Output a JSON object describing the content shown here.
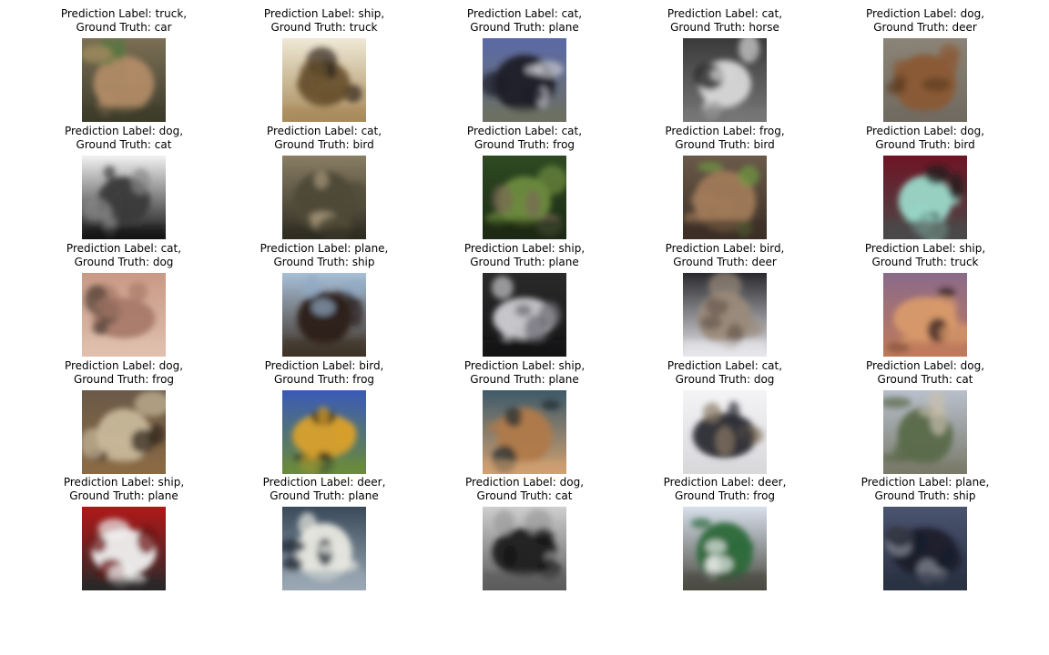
{
  "figure": {
    "panels": [
      {
        "pred": "Prediction Label: truck,",
        "truth": "Ground Truth: car",
        "thumb": "deer",
        "colors": [
          "#7c7055",
          "#b08a66",
          "#4f7a3a",
          "#3a3a2a"
        ]
      },
      {
        "pred": "Prediction Label: ship,",
        "truth": "Ground Truth: truck",
        "thumb": "dog-face",
        "colors": [
          "#efe9d6",
          "#6a5230",
          "#2e2519",
          "#a88a5a"
        ]
      },
      {
        "pred": "Prediction Label: cat,",
        "truth": "Ground Truth: plane",
        "thumb": "truck",
        "colors": [
          "#5a6aa8",
          "#1f1f28",
          "#c8c8d0",
          "#6d7060"
        ]
      },
      {
        "pred": "Prediction Label: cat,",
        "truth": "Ground Truth: horse",
        "thumb": "ostrich",
        "colors": [
          "#3a3a3a",
          "#d8d8d8",
          "#111111",
          "#777777"
        ]
      },
      {
        "pred": "Prediction Label: dog,",
        "truth": "Ground Truth: deer",
        "thumb": "deer-brown",
        "colors": [
          "#8c8478",
          "#8a5a34",
          "#5e3c22",
          "#6f6a5f"
        ]
      },
      {
        "pred": "Prediction Label: dog,",
        "truth": "Ground Truth: cat",
        "thumb": "old-car",
        "colors": [
          "#f2f2f2",
          "#3a3a3a",
          "#888888",
          "#111111"
        ]
      },
      {
        "pred": "Prediction Label: cat,",
        "truth": "Ground Truth: bird",
        "thumb": "frog",
        "colors": [
          "#8a7e64",
          "#4e4a36",
          "#a8977a",
          "#2e2c22"
        ]
      },
      {
        "pred": "Prediction Label: cat,",
        "truth": "Ground Truth: frog",
        "thumb": "bird-leaves",
        "colors": [
          "#2f4a22",
          "#6e8a3e",
          "#7a6a56",
          "#1a2a14"
        ]
      },
      {
        "pred": "Prediction Label: frog,",
        "truth": "Ground Truth: bird",
        "thumb": "frog-brown",
        "colors": [
          "#6a5a4a",
          "#a07a5a",
          "#6e9a3e",
          "#3a2e24"
        ]
      },
      {
        "pred": "Prediction Label: dog,",
        "truth": "Ground Truth: bird",
        "thumb": "dog-dark",
        "colors": [
          "#6e1424",
          "#9ad8c8",
          "#1a1a1a",
          "#4a4a4a"
        ]
      },
      {
        "pred": "Prediction Label: cat,",
        "truth": "Ground Truth: dog",
        "thumb": "bird-branch",
        "colors": [
          "#c89a86",
          "#a87a6a",
          "#4e3e34",
          "#e0bfae"
        ]
      },
      {
        "pred": "Prediction Label: plane,",
        "truth": "Ground Truth: ship",
        "thumb": "eagle",
        "colors": [
          "#a8c0d8",
          "#2a1e18",
          "#90aac4",
          "#3e3024"
        ]
      },
      {
        "pred": "Prediction Label: ship,",
        "truth": "Ground Truth: plane",
        "thumb": "silver-car",
        "colors": [
          "#2a2a2a",
          "#c8c8cc",
          "#6a6a70",
          "#141414"
        ]
      },
      {
        "pred": "Prediction Label: bird,",
        "truth": "Ground Truth: deer",
        "thumb": "frog-closeup",
        "colors": [
          "#2a2a2e",
          "#9a8a7a",
          "#6a5a50",
          "#e8e8ec"
        ]
      },
      {
        "pred": "Prediction Label: ship,",
        "truth": "Ground Truth: truck",
        "thumb": "jet-sunset",
        "colors": [
          "#8a6a8a",
          "#d89a6a",
          "#2a1a1a",
          "#c07a5a"
        ]
      },
      {
        "pred": "Prediction Label: dog,",
        "truth": "Ground Truth: frog",
        "thumb": "cat-tabby",
        "colors": [
          "#6a5a48",
          "#c8b89a",
          "#2e2418",
          "#8a6a44"
        ]
      },
      {
        "pred": "Prediction Label: bird,",
        "truth": "Ground Truth: frog",
        "thumb": "truck-yellow",
        "colors": [
          "#3a5ab8",
          "#d8a02a",
          "#1a1a1a",
          "#6a8a3a"
        ]
      },
      {
        "pred": "Prediction Label: ship,",
        "truth": "Ground Truth: plane",
        "thumb": "cat-face",
        "colors": [
          "#3e5a6a",
          "#b07a4a",
          "#1a2a30",
          "#d0a070"
        ]
      },
      {
        "pred": "Prediction Label: cat,",
        "truth": "Ground Truth: dog",
        "thumb": "plane-small",
        "colors": [
          "#f4f4f6",
          "#2a2a34",
          "#8a7a64",
          "#d8d8dc"
        ]
      },
      {
        "pred": "Prediction Label: dog,",
        "truth": "Ground Truth: cat",
        "thumb": "plane-ground",
        "colors": [
          "#b8c0cc",
          "#5a6a4a",
          "#c8bfae",
          "#7a7a6a"
        ]
      },
      {
        "pred": "Prediction Label: ship,",
        "truth": "Ground Truth: plane",
        "thumb": "fire-truck",
        "colors": [
          "#b01818",
          "#f0f0f0",
          "#6a1010",
          "#2a2a2a"
        ]
      },
      {
        "pred": "Prediction Label: deer,",
        "truth": "Ground Truth: plane",
        "thumb": "ship",
        "colors": [
          "#3a4a5a",
          "#e8e8e0",
          "#1a2430",
          "#9aa8b4"
        ]
      },
      {
        "pred": "Prediction Label: dog,",
        "truth": "Ground Truth: cat",
        "thumb": "horse-statue",
        "colors": [
          "#cfcfcf",
          "#1a1a1a",
          "#9a9a9a",
          "#5a5a5a"
        ]
      },
      {
        "pred": "Prediction Label: deer,",
        "truth": "Ground Truth: frog",
        "thumb": "tow-truck",
        "colors": [
          "#d8e0ec",
          "#2a6a3a",
          "#e8e8e8",
          "#4a4a40"
        ]
      },
      {
        "pred": "Prediction Label: plane,",
        "truth": "Ground Truth: ship",
        "thumb": "blue-car",
        "colors": [
          "#4a5470",
          "#1a1e2a",
          "#8a8e9a",
          "#2a3040"
        ]
      }
    ]
  }
}
